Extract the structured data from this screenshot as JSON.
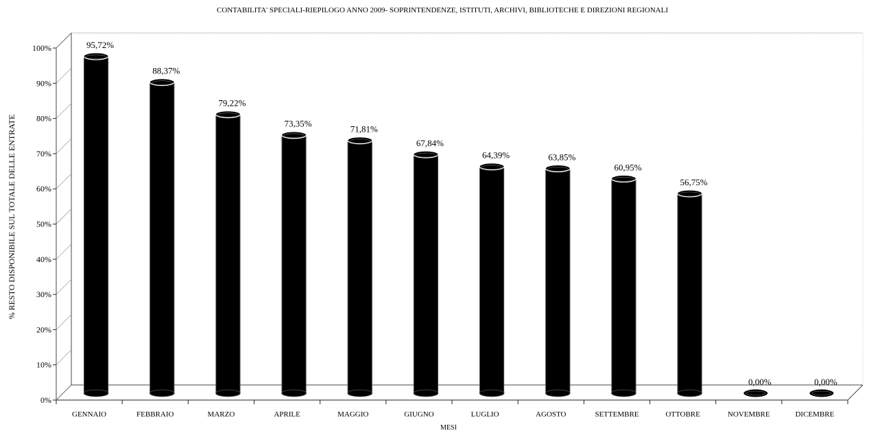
{
  "chart_data": {
    "type": "bar",
    "title": "CONTABILITA' SPECIALI-RIEPILOGO ANNO 2009- SOPRINTENDENZE, ISTITUTI, ARCHIVI, BIBLIOTECHE E DIREZIONI REGIONALI",
    "xlabel": "MESI",
    "ylabel": "% RESTO DISPONIBILE SUL TOTALE DELLE ENTRATE",
    "categories": [
      "GENNAIO",
      "FEBBRAIO",
      "MARZO",
      "APRILE",
      "MAGGIO",
      "GIUGNO",
      "LUGLIO",
      "AGOSTO",
      "SETTEMBRE",
      "OTTOBRE",
      "NOVEMBRE",
      "DICEMBRE"
    ],
    "values": [
      95.72,
      88.37,
      79.22,
      73.35,
      71.81,
      67.84,
      64.39,
      63.85,
      60.95,
      56.75,
      0.0,
      0.0
    ],
    "value_labels": [
      "95,72%",
      "88,37%",
      "79,22%",
      "73,35%",
      "71,81%",
      "67,84%",
      "64,39%",
      "63,85%",
      "60,95%",
      "56,75%",
      "0,00%",
      "0,00%"
    ],
    "yticks": [
      "0%",
      "10%",
      "20%",
      "30%",
      "40%",
      "50%",
      "60%",
      "70%",
      "80%",
      "90%",
      "100%"
    ],
    "ylim": [
      0,
      100
    ],
    "grid": false,
    "bar_style": "3d-cylinder",
    "bar_color": "#000000"
  }
}
